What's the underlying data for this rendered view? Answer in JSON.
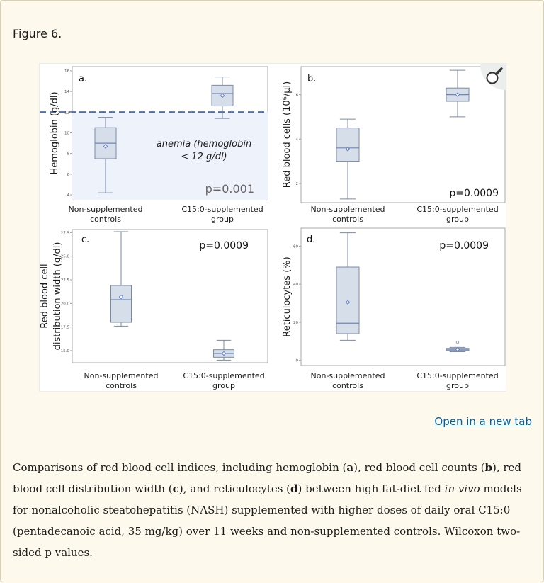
{
  "figure_title": "Figure 6.",
  "open_link": "Open in a new tab",
  "zoom_icon": "magnifier-icon",
  "colors": {
    "box_fill": "#d6deea",
    "box_stroke": "#7a8aa6",
    "median": "#6f86bd",
    "mean_marker": "#5a78c8",
    "dashed_line": "#4d6fb3",
    "anemia_fill": "#eef2fa",
    "axis": "#9a9a9a"
  },
  "caption": {
    "p1": "Comparisons of red blood cell indices, including hemoglobin (",
    "a": "a",
    "p2": "), red blood cell counts (",
    "b": "b",
    "p3": "), red blood cell distribution width (",
    "c": "c",
    "p4": "), and reticulocytes (",
    "d": "d",
    "p5": ") between high fat-diet fed ",
    "invivo": "in vivo",
    "p6": " models for nonalcoholic steatohepatitis (NASH) supplemented with higher doses of daily oral C15:0 (pentadecanoic acid, 35 mg/kg) over 11 weeks and non-supplemented controls. Wilcoxon two-sided p values."
  },
  "chart_data": [
    {
      "type": "box",
      "panel_label": "a.",
      "ylabel": "Hemoglobin (g/dl)",
      "ylim": [
        3.8,
        16.2
      ],
      "yticks": [
        "4",
        "6",
        "8",
        "10",
        "12",
        "14",
        "16"
      ],
      "categories": [
        "Non-supplemented controls",
        "C15:0-supplemented group"
      ],
      "category_lines": [
        [
          "Non-supplemented",
          "controls"
        ],
        [
          "C15:0-supplemented",
          "group"
        ]
      ],
      "boxes": [
        {
          "min": 4.2,
          "q1": 7.5,
          "median": 9.0,
          "q3": 10.5,
          "max": 11.5,
          "mean": 8.7,
          "outliers": []
        },
        {
          "min": 11.4,
          "q1": 12.6,
          "median": 13.8,
          "q3": 14.6,
          "max": 15.4,
          "mean": 13.6,
          "outliers": []
        }
      ],
      "reference_line": 12,
      "annotation_lines": [
        "anemia (hemoglobin",
        "< 12 g/dl)"
      ],
      "p_value": "p=0.001"
    },
    {
      "type": "box",
      "panel_label": "b.",
      "ylabel": "Red blood cells (10⁶/µl)",
      "ylim": [
        1.2,
        7.2
      ],
      "yticks": [
        "2",
        "4",
        "6"
      ],
      "categories": [
        "Non-supplemented controls",
        "C15:0-supplemented group"
      ],
      "category_lines": [
        [
          "Non-supplemented",
          "controls"
        ],
        [
          "C15:0-supplemented",
          "group"
        ]
      ],
      "boxes": [
        {
          "min": 1.3,
          "q1": 3.0,
          "median": 3.6,
          "q3": 4.5,
          "max": 4.9,
          "mean": 3.55,
          "outliers": []
        },
        {
          "min": 5.0,
          "q1": 5.7,
          "median": 6.0,
          "q3": 6.3,
          "max": 7.1,
          "mean": 6.0,
          "outliers": []
        }
      ],
      "p_value": "p=0.0009"
    },
    {
      "type": "box",
      "panel_label": "c.",
      "ylabel_lines": [
        "Red blood cell",
        "distribution width (g/dl)"
      ],
      "ylim": [
        13.8,
        27.6
      ],
      "yticks": [
        "15.0",
        "17.5",
        "20.0",
        "22.5",
        "25.0",
        "27.5"
      ],
      "categories": [
        "Non-supplemented controls",
        "C15:0-supplemented group"
      ],
      "category_lines": [
        [
          "Non-supplemented",
          "controls"
        ],
        [
          "C15:0-supplemented",
          "group"
        ]
      ],
      "boxes": [
        {
          "min": 17.6,
          "q1": 18.0,
          "median": 20.4,
          "q3": 21.9,
          "max": 27.6,
          "mean": 20.7,
          "outliers": []
        },
        {
          "min": 14.0,
          "q1": 14.3,
          "median": 14.7,
          "q3": 15.1,
          "max": 16.1,
          "mean": 14.7,
          "outliers": []
        }
      ],
      "p_value": "p=0.0009"
    },
    {
      "type": "box",
      "panel_label": "d.",
      "ylabel": "Reticulocytes (%)",
      "ylim": [
        -2,
        68
      ],
      "yticks": [
        "0",
        "20",
        "40",
        "60"
      ],
      "categories": [
        "Non-supplemented controls",
        "C15:0-supplemented group"
      ],
      "category_lines": [
        [
          "Non-supplemented",
          "controls"
        ],
        [
          "C15:0-supplemented",
          "group"
        ]
      ],
      "boxes": [
        {
          "min": 10.5,
          "q1": 14.0,
          "median": 19.5,
          "q3": 49.0,
          "max": 67.0,
          "mean": 30.5,
          "outliers": []
        },
        {
          "min": 4.5,
          "q1": 5.0,
          "median": 5.5,
          "q3": 6.3,
          "max": 6.8,
          "mean": 5.8,
          "outliers": [
            9.5
          ]
        }
      ],
      "p_value": "p=0.0009"
    }
  ]
}
